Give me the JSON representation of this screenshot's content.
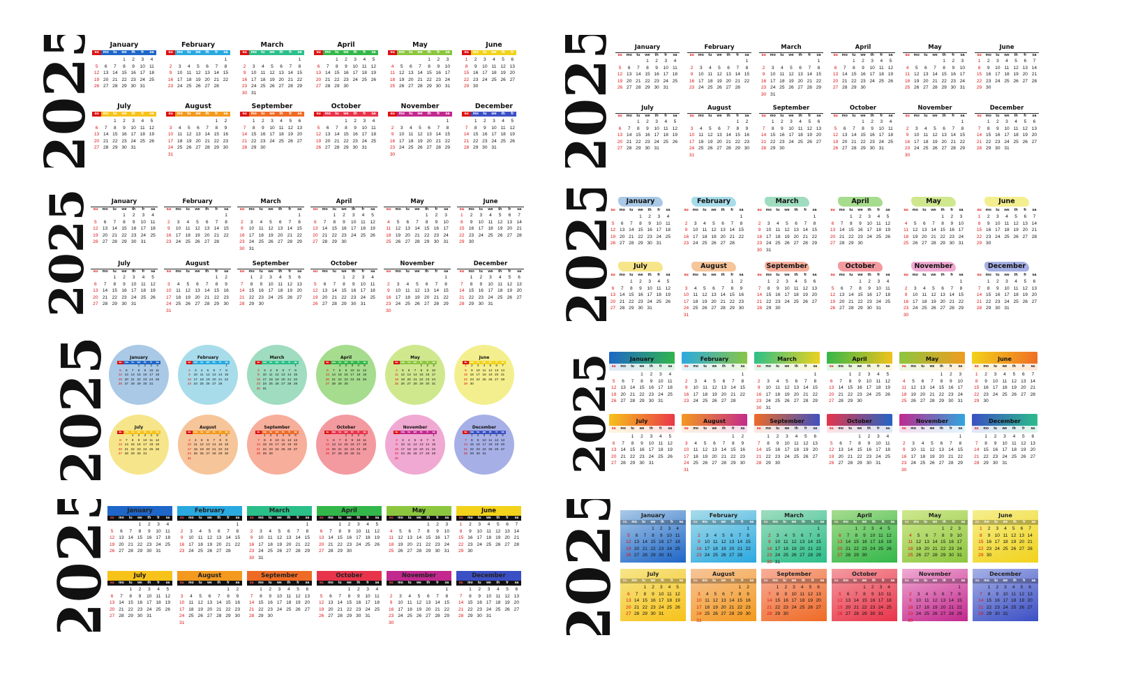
{
  "year": "2025",
  "weekdays": [
    "su",
    "mo",
    "tu",
    "we",
    "th",
    "fr",
    "sa"
  ],
  "months": [
    {
      "name": "January",
      "offset": 3,
      "days": 31
    },
    {
      "name": "February",
      "offset": 6,
      "days": 28
    },
    {
      "name": "March",
      "offset": 6,
      "days": 31
    },
    {
      "name": "April",
      "offset": 2,
      "days": 30
    },
    {
      "name": "May",
      "offset": 4,
      "days": 31
    },
    {
      "name": "June",
      "offset": 0,
      "days": 30
    },
    {
      "name": "July",
      "offset": 2,
      "days": 31
    },
    {
      "name": "August",
      "offset": 5,
      "days": 31
    },
    {
      "name": "September",
      "offset": 1,
      "days": 30
    },
    {
      "name": "October",
      "offset": 3,
      "days": 31
    },
    {
      "name": "November",
      "offset": 6,
      "days": 30
    },
    {
      "name": "December",
      "offset": 1,
      "days": 31
    }
  ],
  "palette": {
    "rainbow": [
      "#1e66c8",
      "#2aa9e0",
      "#2bbf8a",
      "#33b74a",
      "#8cc63f",
      "#f2d21b",
      "#f7c21a",
      "#f39a1e",
      "#ef6b25",
      "#e8344a",
      "#c2288e",
      "#3b4fc4"
    ],
    "pastel": [
      "#a9c9e6",
      "#a8dcea",
      "#9fdcc0",
      "#a6dc8e",
      "#cfe88e",
      "#f4ef8e",
      "#f6e58a",
      "#f6c59a",
      "#f7ae9b",
      "#f39aa0",
      "#f0a9d2",
      "#a6b0e6"
    ],
    "sunday_red": "#d11111",
    "ink": "#111111"
  }
}
